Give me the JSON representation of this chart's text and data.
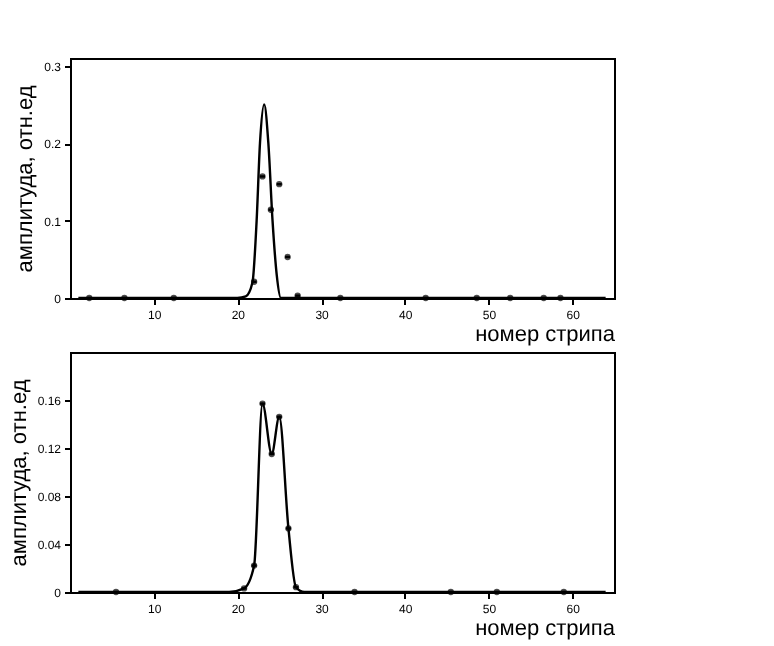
{
  "chart_data": [
    {
      "type": "line",
      "xlabel": "номер стрипа",
      "ylabel": "амплитуда, отн.ед",
      "xlim": [
        0,
        65
      ],
      "xticks": [
        10,
        20,
        30,
        40,
        50,
        60
      ],
      "ylim": [
        0,
        0.31
      ],
      "yticks": [
        0,
        0.1,
        0.2,
        0.3
      ],
      "grid": false,
      "series": [
        {
          "color": "#000000",
          "marker": "none",
          "x": [
            1,
            12,
            20,
            21,
            21.8,
            22.3,
            22.7,
            23.2,
            23.7,
            24.2,
            24.7,
            25.2,
            30,
            45,
            64
          ],
          "values": [
            0,
            0,
            0,
            0.002,
            0.02,
            0.1,
            0.2,
            0.25,
            0.2,
            0.1,
            0.03,
            0,
            0,
            0,
            0
          ]
        },
        {
          "type": "scatter",
          "color": "#000000",
          "marker": "circle",
          "x": [
            2.3,
            6.5,
            12.4,
            22,
            23,
            24,
            25,
            26,
            27.2,
            32.3,
            42.5,
            48.6,
            52.6,
            56.6,
            58.6
          ],
          "values": [
            0,
            0,
            0,
            0.021,
            0.157,
            0.114,
            0.147,
            0.053,
            0.003,
            0,
            0,
            0,
            0,
            0,
            0
          ],
          "xerrors": [
            0.3,
            0.3,
            0.3,
            0.3,
            0.3,
            0.3,
            0.3,
            0.3,
            0.3,
            0.3,
            0.3,
            0.3,
            0.3,
            0.3,
            0.3
          ]
        }
      ]
    },
    {
      "type": "line",
      "xlabel": "номер стрипа",
      "ylabel": "амплитуда, отн.ед",
      "xlim": [
        0,
        65
      ],
      "xticks": [
        10,
        20,
        30,
        40,
        50,
        60
      ],
      "ylim": [
        0,
        0.2
      ],
      "yticks": [
        0,
        0.04,
        0.08,
        0.12,
        0.16
      ],
      "grid": false,
      "series": [
        {
          "color": "#000000",
          "marker": "none",
          "x": [
            1,
            10,
            19,
            20.8,
            22,
            23,
            24.1,
            25,
            26.1,
            27,
            28,
            40,
            64
          ],
          "values": [
            0,
            0,
            0,
            0.003,
            0.022,
            0.157,
            0.115,
            0.146,
            0.053,
            0.004,
            0,
            0,
            0
          ]
        },
        {
          "type": "scatter",
          "color": "#000000",
          "marker": "circle",
          "x": [
            5.5,
            20.8,
            22,
            23,
            24.1,
            25,
            26.1,
            27,
            34,
            45.5,
            51,
            59
          ],
          "values": [
            0,
            0.003,
            0.022,
            0.157,
            0.115,
            0.146,
            0.053,
            0.004,
            0,
            0,
            0,
            0
          ],
          "xerrors": [
            0.3,
            0.3,
            0.3,
            0.3,
            0.3,
            0.3,
            0.3,
            0.3,
            0.3,
            0.3,
            0.3,
            0.3
          ]
        }
      ]
    }
  ]
}
